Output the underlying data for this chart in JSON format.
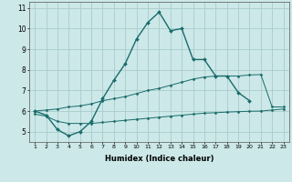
{
  "series_main_x": [
    1,
    2,
    3,
    4,
    5,
    6,
    7,
    8,
    9,
    10,
    11,
    12,
    13,
    14,
    15,
    16,
    17,
    18,
    19,
    20,
    21,
    22,
    23
  ],
  "series_main_y": [
    6.0,
    5.8,
    5.1,
    4.8,
    5.0,
    5.5,
    6.6,
    7.5,
    8.3,
    9.5,
    10.3,
    10.8,
    9.9,
    10.0,
    8.5,
    8.5,
    7.7,
    7.7,
    6.9,
    6.5,
    null,
    null,
    null
  ],
  "series_upper_x": [
    1,
    2,
    3,
    4,
    5,
    6,
    7,
    8,
    9,
    10,
    11,
    12,
    13,
    14,
    15,
    16,
    17,
    18,
    19,
    20,
    21,
    22,
    23
  ],
  "series_upper_y": [
    6.0,
    6.05,
    6.1,
    6.2,
    6.25,
    6.35,
    6.5,
    6.6,
    6.7,
    6.85,
    7.0,
    7.1,
    7.25,
    7.4,
    7.55,
    7.65,
    7.7,
    7.7,
    7.7,
    7.75,
    7.77,
    6.2,
    6.2
  ],
  "series_lower_x": [
    1,
    2,
    3,
    4,
    5,
    6,
    7,
    8,
    9,
    10,
    11,
    12,
    13,
    14,
    15,
    16,
    17,
    18,
    19,
    20,
    21,
    22,
    23
  ],
  "series_lower_y": [
    5.85,
    5.75,
    5.5,
    5.4,
    5.4,
    5.4,
    5.45,
    5.5,
    5.55,
    5.6,
    5.65,
    5.7,
    5.75,
    5.8,
    5.85,
    5.9,
    5.92,
    5.95,
    5.97,
    5.99,
    6.0,
    6.05,
    6.1
  ],
  "color": "#1a6b6b",
  "bg_color": "#cce8e8",
  "grid_color": "#aacccc",
  "ylabel_values": [
    5,
    6,
    7,
    8,
    9,
    10,
    11
  ],
  "xlabel": "Humidex (Indice chaleur)",
  "ylim": [
    4.5,
    11.3
  ],
  "xlim": [
    0.5,
    23.5
  ]
}
